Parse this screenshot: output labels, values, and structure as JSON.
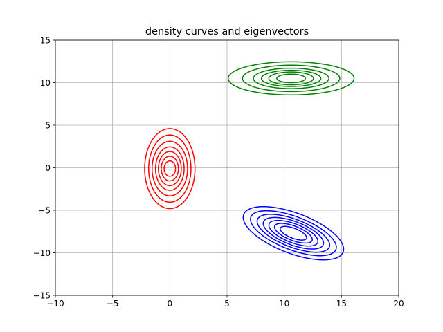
{
  "chart_data": {
    "type": "contour",
    "title": "density curves and eigenvectors",
    "xlabel": "",
    "ylabel": "",
    "xlim": [
      -10,
      20
    ],
    "ylim": [
      -15,
      15
    ],
    "xticks": [
      -10,
      -5,
      0,
      5,
      10,
      15,
      20
    ],
    "yticks": [
      -15,
      -10,
      -5,
      0,
      5,
      10,
      15
    ],
    "xtick_labels": [
      "−10",
      "−5",
      "0",
      "5",
      "10",
      "15",
      "20"
    ],
    "ytick_labels": [
      "−15",
      "−10",
      "−5",
      "0",
      "5",
      "10",
      "15"
    ],
    "grid": true,
    "series": [
      {
        "color": "#ff0000",
        "center": [
          0,
          -0.1
        ],
        "axis_directions_deg": [
          0,
          90
        ],
        "contours": [
          {
            "semi_axes": [
              2.2,
              4.7
            ]
          },
          {
            "semi_axes": [
              1.85,
              3.95
            ]
          },
          {
            "semi_axes": [
              1.55,
              3.2
            ]
          },
          {
            "semi_axes": [
              1.25,
              2.55
            ]
          },
          {
            "semi_axes": [
              1.0,
              2.0
            ]
          },
          {
            "semi_axes": [
              0.75,
              1.45
            ]
          },
          {
            "semi_axes": [
              0.5,
              0.9
            ]
          }
        ]
      },
      {
        "color": "#008000",
        "center": [
          10.6,
          10.5
        ],
        "axis_directions_deg": [
          0,
          90
        ],
        "contours": [
          {
            "semi_axes": [
              5.5,
              1.95
            ]
          },
          {
            "semi_axes": [
              4.25,
              1.55
            ]
          },
          {
            "semi_axes": [
              3.3,
              1.2
            ]
          },
          {
            "semi_axes": [
              2.6,
              0.95
            ]
          },
          {
            "semi_axes": [
              1.95,
              0.75
            ]
          },
          {
            "semi_axes": [
              1.25,
              0.5
            ]
          }
        ]
      },
      {
        "color": "#0000ff",
        "center": [
          10.8,
          -7.7
        ],
        "axis_directions_deg": [
          -30,
          60
        ],
        "contours": [
          {
            "semi_axes": [
              4.9,
              2.25
            ]
          },
          {
            "semi_axes": [
              4.2,
              1.85
            ]
          },
          {
            "semi_axes": [
              3.55,
              1.55
            ]
          },
          {
            "semi_axes": [
              2.95,
              1.3
            ]
          },
          {
            "semi_axes": [
              2.4,
              1.05
            ]
          },
          {
            "semi_axes": [
              1.85,
              0.8
            ]
          },
          {
            "semi_axes": [
              1.3,
              0.55
            ]
          }
        ]
      }
    ]
  }
}
